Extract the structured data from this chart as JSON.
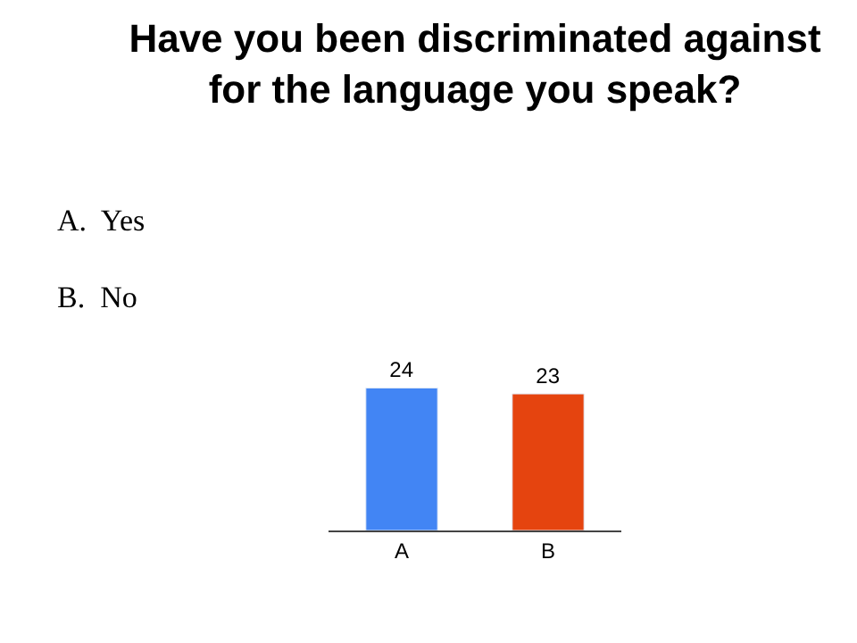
{
  "chart_data": {
    "type": "bar",
    "title": "Have you been discriminated against\nfor the language you speak?",
    "categories": [
      "A",
      "B"
    ],
    "values": [
      24,
      23
    ],
    "colors": [
      "#4285f4",
      "#e5440f"
    ],
    "data_labels": true,
    "annotations": [
      "A.  Yes",
      "B.  No"
    ]
  }
}
